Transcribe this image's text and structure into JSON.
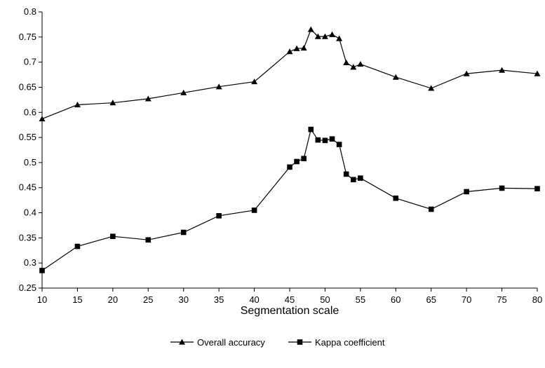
{
  "chart_data": {
    "type": "line",
    "xlabel": "Segmentation scale",
    "ylabel": "",
    "xlim": [
      10,
      80
    ],
    "ylim": [
      0.25,
      0.8
    ],
    "x_ticks": [
      "10",
      "15",
      "20",
      "25",
      "30",
      "35",
      "40",
      "45",
      "50",
      "55",
      "60",
      "65",
      "70",
      "75",
      "80"
    ],
    "y_ticks": [
      "0.25",
      "0.3",
      "0.35",
      "0.4",
      "0.45",
      "0.5",
      "0.55",
      "0.6",
      "0.65",
      "0.7",
      "0.75",
      "0.8"
    ],
    "grid": false,
    "legend_position": "bottom",
    "series": [
      {
        "name": "Overall accuracy",
        "marker": "triangle",
        "color": "#000000",
        "x": [
          10,
          15,
          20,
          25,
          30,
          35,
          40,
          45,
          46,
          47,
          48,
          49,
          50,
          51,
          52,
          53,
          54,
          55,
          60,
          65,
          70,
          75,
          80
        ],
        "values": [
          0.587,
          0.615,
          0.619,
          0.627,
          0.639,
          0.651,
          0.661,
          0.721,
          0.727,
          0.728,
          0.765,
          0.751,
          0.751,
          0.755,
          0.747,
          0.699,
          0.69,
          0.696,
          0.67,
          0.648,
          0.677,
          0.684,
          0.677
        ]
      },
      {
        "name": "Kappa coefficient",
        "marker": "square",
        "color": "#000000",
        "x": [
          10,
          15,
          20,
          25,
          30,
          35,
          40,
          45,
          46,
          47,
          48,
          49,
          50,
          51,
          52,
          53,
          54,
          55,
          60,
          65,
          70,
          75,
          80
        ],
        "values": [
          0.285,
          0.333,
          0.353,
          0.346,
          0.361,
          0.394,
          0.405,
          0.491,
          0.502,
          0.508,
          0.566,
          0.545,
          0.544,
          0.547,
          0.536,
          0.477,
          0.466,
          0.469,
          0.429,
          0.407,
          0.442,
          0.449,
          0.448
        ]
      }
    ]
  }
}
